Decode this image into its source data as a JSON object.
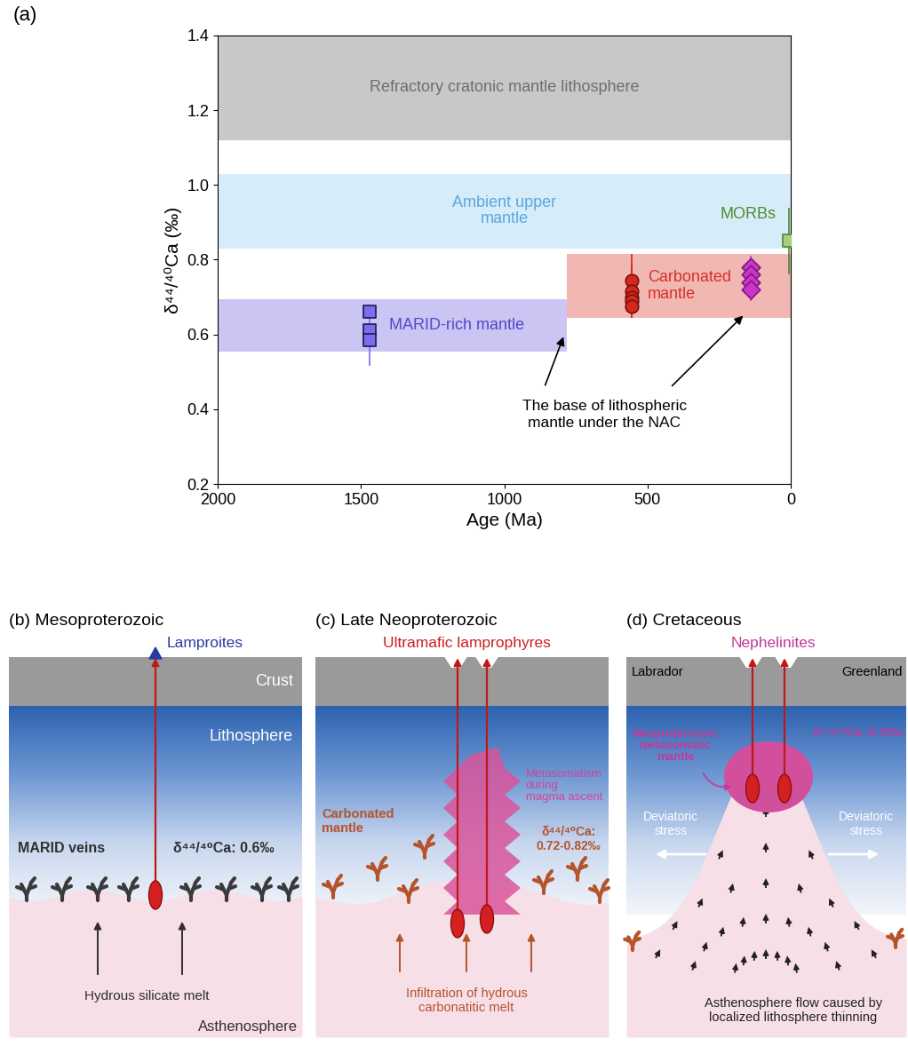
{
  "chart_data": {
    "type": "scatter",
    "panel_label": "(a)",
    "xlabel": "Age (Ma)",
    "ylabel": "δ⁴⁴/⁴⁰Ca (‰)",
    "xlim": [
      2000,
      0
    ],
    "ylim": [
      0.2,
      1.4
    ],
    "xticks": [
      2000,
      1500,
      1000,
      500,
      0
    ],
    "yticks": [
      0.2,
      0.4,
      0.6,
      0.8,
      {
        "value": 1.0,
        "label": "1.0"
      },
      1.2,
      1.4
    ],
    "bands": [
      {
        "label": "Refractory cratonic mantle lithosphere",
        "color": "#c8c8c8",
        "x": [
          2000,
          0
        ],
        "y": [
          1.12,
          1.4
        ]
      },
      {
        "label": "Ambient upper\nmantle",
        "color": "#d7ecf9",
        "x": [
          2000,
          0
        ],
        "y": [
          0.83,
          1.03
        ]
      },
      {
        "label": "MARID-rich mantle",
        "color": "#cbc5f3",
        "x": [
          2000,
          780
        ],
        "y": [
          0.555,
          0.695
        ]
      },
      {
        "label": "Carbonated\nmantle",
        "color": "#f1b7b2",
        "x": [
          780,
          0
        ],
        "y": [
          0.645,
          0.815
        ]
      }
    ],
    "series": [
      {
        "marker": "s",
        "color": "#7b6cf0",
        "x": [
          1470,
          1470,
          1470
        ],
        "values": [
          0.66,
          0.61,
          0.585
        ],
        "errors": [
          0.02,
          0.02,
          0.07
        ]
      },
      {
        "marker": "o",
        "color": "#d7261e",
        "x": [
          555,
          555,
          555,
          555,
          555
        ],
        "values": [
          0.745,
          0.715,
          0.7,
          0.69,
          0.675
        ],
        "errors": [
          0.07,
          0.07,
          0.03,
          0.03,
          0.03
        ]
      },
      {
        "marker": "D",
        "color": "#cc33cc",
        "x": [
          140,
          140,
          140,
          140
        ],
        "values": [
          0.78,
          0.76,
          0.74,
          0.72
        ],
        "errors": [
          0.03,
          0.03,
          0.03,
          0.03
        ]
      },
      {
        "name": "MORBs",
        "marker": "s",
        "color": "#a6cf80",
        "x": [
          5
        ],
        "values": [
          0.85
        ],
        "errors": [
          0.09
        ]
      }
    ],
    "annotation": {
      "text": "The base of lithospheric\nmantle under the NAC",
      "points": [
        [
          790,
          0.6
        ],
        [
          160,
          0.655
        ]
      ]
    }
  },
  "diagrams": [
    {
      "title": "(b) Mesoproterozoic",
      "eruption": "Lamproites",
      "crust": "Crust",
      "lithosphere": "Lithosphere",
      "veins": "MARID veins",
      "ca": "δ⁴⁴/⁴⁰Ca: 0.6‰",
      "melt": "Hydrous silicate melt",
      "asthenosphere": "Asthenosphere"
    },
    {
      "title": "(c) Late Neoproterozoic",
      "eruption": "Ultramafic lamprophyres",
      "metasomatism": "Metasomatism\nduring\nmagma ascent",
      "veins": "Carbonated\nmantle",
      "ca": "δ⁴⁴/⁴⁰Ca:\n0.72-0.82‰",
      "melt": "Infiltration of hydrous\ncarbonatitic melt"
    },
    {
      "title": "(d) Cretaceous",
      "eruption": "Nephelinites",
      "left_region": "Labrador",
      "right_region": "Greenland",
      "metasomatism": "Neoproterozoic\nmetasomatic\nmantle",
      "ca": "δ⁴⁴/⁴⁰Ca: 0.75‰",
      "stress_left": "Deviatoric\nstress",
      "stress_right": "Deviatoric\nstress",
      "flow": "Asthenosphere flow caused by\nlocalized lithosphere thinning"
    }
  ]
}
